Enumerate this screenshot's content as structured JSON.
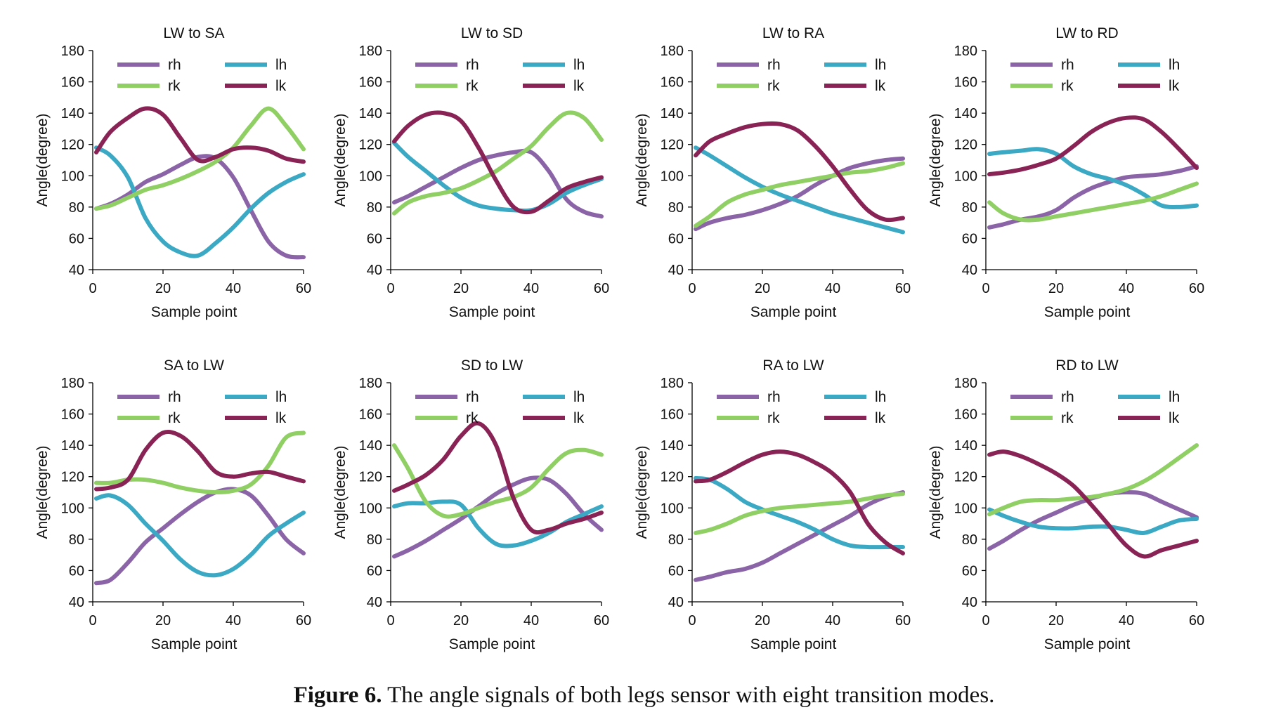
{
  "caption": {
    "label": "Figure 6.",
    "text": " The angle signals of both legs sensor with eight transition modes."
  },
  "colors": {
    "rh": "#8B64A8",
    "lh": "#3BA8C4",
    "rk": "#8FCF63",
    "lk": "#8A2355"
  },
  "chart_data": [
    {
      "type": "line",
      "title": "LW to SA",
      "xlabel": "Sample point",
      "ylabel": "Angle(degree)",
      "xlim": [
        0,
        60
      ],
      "ylim": [
        40,
        180
      ],
      "xticks": [
        0,
        20,
        40,
        60
      ],
      "yticks": [
        40,
        60,
        80,
        100,
        120,
        140,
        160,
        180
      ],
      "grid": false,
      "legend": "top, 2 columns",
      "x": [
        1,
        5,
        10,
        15,
        20,
        25,
        30,
        35,
        40,
        45,
        50,
        55,
        60
      ],
      "series": [
        {
          "name": "rh",
          "values": [
            79,
            82,
            88,
            96,
            101,
            107,
            112,
            111,
            99,
            78,
            58,
            49,
            48
          ]
        },
        {
          "name": "lh",
          "values": [
            118,
            113,
            99,
            73,
            58,
            51,
            49,
            57,
            67,
            79,
            89,
            96,
            101
          ]
        },
        {
          "name": "rk",
          "values": [
            79,
            81,
            86,
            91,
            94,
            98,
            103,
            109,
            118,
            132,
            143,
            132,
            117
          ]
        },
        {
          "name": "lk",
          "values": [
            115,
            128,
            137,
            143,
            139,
            124,
            110,
            112,
            117,
            118,
            116,
            111,
            109
          ]
        }
      ]
    },
    {
      "type": "line",
      "title": "LW to SD",
      "xlabel": "Sample point",
      "ylabel": "Angle(degree)",
      "xlim": [
        0,
        60
      ],
      "ylim": [
        40,
        180
      ],
      "xticks": [
        0,
        20,
        40,
        60
      ],
      "yticks": [
        40,
        60,
        80,
        100,
        120,
        140,
        160,
        180
      ],
      "grid": false,
      "legend": "top, 2 columns",
      "x": [
        1,
        5,
        10,
        15,
        20,
        25,
        30,
        35,
        40,
        45,
        50,
        55,
        60
      ],
      "series": [
        {
          "name": "rh",
          "values": [
            83,
            87,
            93,
            99,
            105,
            110,
            113,
            115,
            115,
            103,
            85,
            77,
            74
          ]
        },
        {
          "name": "lh",
          "values": [
            121,
            112,
            103,
            94,
            86,
            81,
            79,
            78,
            78,
            82,
            89,
            94,
            98
          ]
        },
        {
          "name": "rk",
          "values": [
            76,
            83,
            87,
            89,
            92,
            97,
            103,
            111,
            119,
            131,
            140,
            137,
            123
          ]
        },
        {
          "name": "lk",
          "values": [
            122,
            132,
            139,
            140,
            135,
            118,
            97,
            80,
            77,
            84,
            92,
            96,
            99
          ]
        }
      ]
    },
    {
      "type": "line",
      "title": "LW to RA",
      "xlabel": "Sample point",
      "ylabel": "Angle(degree)",
      "xlim": [
        0,
        60
      ],
      "ylim": [
        40,
        180
      ],
      "xticks": [
        0,
        20,
        40,
        60
      ],
      "yticks": [
        40,
        60,
        80,
        100,
        120,
        140,
        160,
        180
      ],
      "grid": false,
      "legend": "top, 2 columns",
      "x": [
        1,
        5,
        10,
        15,
        20,
        25,
        30,
        35,
        40,
        45,
        50,
        55,
        60
      ],
      "series": [
        {
          "name": "rh",
          "values": [
            66,
            70,
            73,
            75,
            78,
            82,
            87,
            94,
            100,
            105,
            108,
            110,
            111
          ]
        },
        {
          "name": "lh",
          "values": [
            118,
            113,
            106,
            99,
            93,
            88,
            84,
            80,
            76,
            73,
            70,
            67,
            64
          ]
        },
        {
          "name": "rk",
          "values": [
            68,
            74,
            83,
            88,
            91,
            94,
            96,
            98,
            100,
            102,
            103,
            105,
            108
          ]
        },
        {
          "name": "lk",
          "values": [
            113,
            122,
            127,
            131,
            133,
            133,
            129,
            119,
            106,
            91,
            78,
            72,
            73
          ]
        }
      ]
    },
    {
      "type": "line",
      "title": "LW to RD",
      "xlabel": "Sample point",
      "ylabel": "Angle(degree)",
      "xlim": [
        0,
        60
      ],
      "ylim": [
        40,
        180
      ],
      "xticks": [
        0,
        20,
        40,
        60
      ],
      "yticks": [
        40,
        60,
        80,
        100,
        120,
        140,
        160,
        180
      ],
      "grid": false,
      "legend": "top, 2 columns",
      "x": [
        1,
        5,
        10,
        15,
        20,
        25,
        30,
        35,
        40,
        45,
        50,
        55,
        60
      ],
      "series": [
        {
          "name": "rh",
          "values": [
            67,
            69,
            72,
            74,
            78,
            86,
            92,
            96,
            99,
            100,
            101,
            103,
            106
          ]
        },
        {
          "name": "lh",
          "values": [
            114,
            115,
            116,
            117,
            114,
            106,
            101,
            98,
            94,
            88,
            81,
            80,
            81
          ]
        },
        {
          "name": "rk",
          "values": [
            83,
            76,
            72,
            72,
            74,
            76,
            78,
            80,
            82,
            84,
            87,
            91,
            95
          ]
        },
        {
          "name": "lk",
          "values": [
            101,
            102,
            104,
            107,
            111,
            119,
            128,
            134,
            137,
            136,
            128,
            117,
            105
          ]
        }
      ]
    },
    {
      "type": "line",
      "title": "SA to LW",
      "xlabel": "Sample point",
      "ylabel": "Angle(degree)",
      "xlim": [
        0,
        60
      ],
      "ylim": [
        40,
        180
      ],
      "xticks": [
        0,
        20,
        40,
        60
      ],
      "yticks": [
        40,
        60,
        80,
        100,
        120,
        140,
        160,
        180
      ],
      "grid": false,
      "legend": "top, 2 columns",
      "x": [
        1,
        5,
        10,
        15,
        20,
        25,
        30,
        35,
        40,
        45,
        50,
        55,
        60
      ],
      "series": [
        {
          "name": "rh",
          "values": [
            52,
            54,
            65,
            78,
            87,
            96,
            104,
            110,
            112,
            108,
            95,
            80,
            71
          ]
        },
        {
          "name": "lh",
          "values": [
            106,
            108,
            102,
            90,
            79,
            67,
            59,
            57,
            61,
            70,
            82,
            90,
            97
          ]
        },
        {
          "name": "rk",
          "values": [
            116,
            116,
            118,
            118,
            116,
            113,
            111,
            110,
            111,
            115,
            127,
            145,
            148
          ]
        },
        {
          "name": "lk",
          "values": [
            112,
            113,
            118,
            137,
            148,
            146,
            136,
            123,
            120,
            122,
            123,
            120,
            117
          ]
        }
      ]
    },
    {
      "type": "line",
      "title": "SD to LW",
      "xlabel": "Sample point",
      "ylabel": "Angle(degree)",
      "xlim": [
        0,
        60
      ],
      "ylim": [
        40,
        180
      ],
      "xticks": [
        0,
        20,
        40,
        60
      ],
      "yticks": [
        40,
        60,
        80,
        100,
        120,
        140,
        160,
        180
      ],
      "grid": false,
      "legend": "top, 2 columns",
      "x": [
        1,
        5,
        10,
        15,
        20,
        25,
        30,
        35,
        40,
        45,
        50,
        55,
        60
      ],
      "series": [
        {
          "name": "rh",
          "values": [
            69,
            73,
            79,
            86,
            93,
            101,
            109,
            115,
            119,
            118,
            109,
            96,
            86
          ]
        },
        {
          "name": "lh",
          "values": [
            101,
            103,
            103,
            104,
            102,
            87,
            77,
            76,
            79,
            84,
            91,
            96,
            101
          ]
        },
        {
          "name": "rk",
          "values": [
            140,
            125,
            104,
            95,
            96,
            100,
            104,
            107,
            113,
            125,
            135,
            137,
            134
          ]
        },
        {
          "name": "lk",
          "values": [
            111,
            115,
            121,
            131,
            146,
            154,
            140,
            106,
            86,
            86,
            90,
            93,
            97
          ]
        }
      ]
    },
    {
      "type": "line",
      "title": "RA to LW",
      "xlabel": "Sample point",
      "ylabel": "Angle(degree)",
      "xlim": [
        0,
        60
      ],
      "ylim": [
        40,
        180
      ],
      "xticks": [
        0,
        20,
        40,
        60
      ],
      "yticks": [
        40,
        60,
        80,
        100,
        120,
        140,
        160,
        180
      ],
      "grid": false,
      "legend": "top, 2 columns",
      "x": [
        1,
        5,
        10,
        15,
        20,
        25,
        30,
        35,
        40,
        45,
        50,
        55,
        60
      ],
      "series": [
        {
          "name": "rh",
          "values": [
            54,
            56,
            59,
            61,
            65,
            71,
            77,
            83,
            89,
            95,
            102,
            107,
            110
          ]
        },
        {
          "name": "lh",
          "values": [
            119,
            118,
            112,
            104,
            99,
            95,
            91,
            86,
            80,
            76,
            75,
            75,
            75
          ]
        },
        {
          "name": "rk",
          "values": [
            84,
            86,
            90,
            95,
            98,
            100,
            101,
            102,
            103,
            104,
            106,
            108,
            109
          ]
        },
        {
          "name": "lk",
          "values": [
            117,
            118,
            123,
            129,
            134,
            136,
            134,
            129,
            122,
            110,
            90,
            78,
            71
          ]
        }
      ]
    },
    {
      "type": "line",
      "title": "RD to LW",
      "xlabel": "Sample point",
      "ylabel": "Angle(degree)",
      "xlim": [
        0,
        60
      ],
      "ylim": [
        40,
        180
      ],
      "xticks": [
        0,
        20,
        40,
        60
      ],
      "yticks": [
        40,
        60,
        80,
        100,
        120,
        140,
        160,
        180
      ],
      "grid": false,
      "legend": "top, 2 columns",
      "x": [
        1,
        5,
        10,
        15,
        20,
        25,
        30,
        35,
        40,
        45,
        50,
        55,
        60
      ],
      "series": [
        {
          "name": "rh",
          "values": [
            74,
            79,
            86,
            92,
            97,
            102,
            106,
            109,
            110,
            109,
            104,
            99,
            94
          ]
        },
        {
          "name": "lh",
          "values": [
            99,
            95,
            91,
            88,
            87,
            87,
            88,
            88,
            86,
            84,
            88,
            92,
            93
          ]
        },
        {
          "name": "rk",
          "values": [
            96,
            100,
            104,
            105,
            105,
            106,
            107,
            109,
            112,
            117,
            124,
            132,
            140
          ]
        },
        {
          "name": "lk",
          "values": [
            134,
            136,
            133,
            128,
            122,
            114,
            102,
            89,
            76,
            69,
            73,
            76,
            79
          ]
        }
      ]
    }
  ]
}
